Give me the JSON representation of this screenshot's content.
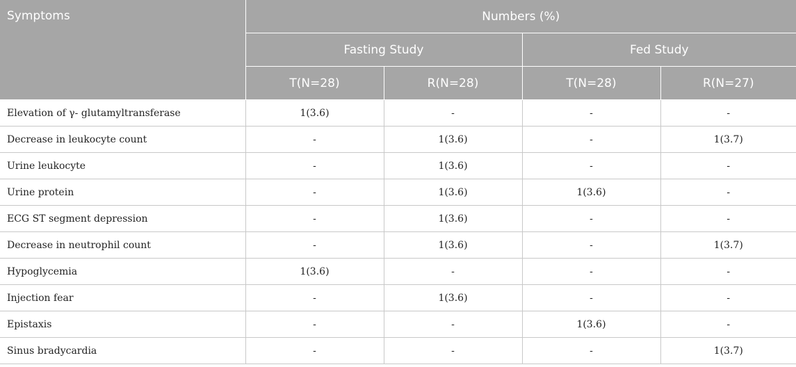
{
  "header": {
    "symptoms_label": "Symptoms",
    "numbers_label": "Numbers (%)",
    "fasting_label": "Fasting Study",
    "fed_label": "Fed Study",
    "columns": [
      "T(N=28)",
      "R(N=28)",
      "T(N=28)",
      "R(N=27)"
    ]
  },
  "rows": [
    {
      "symptom": "Elevation of γ- glutamyltransferase",
      "values": [
        "1(3.6)",
        "-",
        "-",
        "-"
      ]
    },
    {
      "symptom": "Decrease in leukocyte count",
      "values": [
        "-",
        "1(3.6)",
        "-",
        "1(3.7)"
      ]
    },
    {
      "symptom": "Urine leukocyte",
      "values": [
        "-",
        "1(3.6)",
        "-",
        "-"
      ]
    },
    {
      "symptom": "Urine protein",
      "values": [
        "-",
        "1(3.6)",
        "1(3.6)",
        "-"
      ]
    },
    {
      "symptom": "ECG ST segment depression",
      "values": [
        "-",
        "1(3.6)",
        "-",
        "-"
      ]
    },
    {
      "symptom": "Decrease in neutrophil count",
      "values": [
        "-",
        "1(3.6)",
        "-",
        "1(3.7)"
      ]
    },
    {
      "symptom": "Hypoglycemia",
      "values": [
        "1(3.6)",
        "-",
        "-",
        "-"
      ]
    },
    {
      "symptom": "Injection fear",
      "values": [
        "-",
        "1(3.6)",
        "-",
        "-"
      ]
    },
    {
      "symptom": "Epistaxis",
      "values": [
        "-",
        "-",
        "1(3.6)",
        "-"
      ]
    },
    {
      "symptom": "Sinus bradycardia",
      "values": [
        "-",
        "-",
        "-",
        "1(3.7)"
      ]
    }
  ]
}
